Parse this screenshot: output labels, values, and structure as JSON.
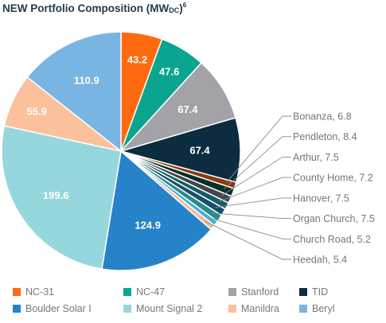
{
  "title": {
    "main": "NEW Portfolio Composition (MW",
    "subscript": "DC",
    "close": ")",
    "superscript": "6"
  },
  "chart_data": {
    "type": "pie",
    "start_angle_deg": 0,
    "direction": "clockwise",
    "slices": [
      {
        "name": "NC-31",
        "value": 43.2,
        "label": "43.2",
        "color": "#ff6a10"
      },
      {
        "name": "NC-47",
        "value": 47.6,
        "label": "47.6",
        "color": "#0aa590"
      },
      {
        "name": "Stanford",
        "value": 67.4,
        "label": "67.4",
        "color": "#a2a2a8"
      },
      {
        "name": "TID",
        "value": 67.4,
        "label": "67.4",
        "color": "#0c2d40"
      },
      {
        "name": "Bonanza",
        "value": 6.8,
        "label": "Bonanza, 6.8",
        "color": "#8a3a0c",
        "callout": true
      },
      {
        "name": "Pendleton",
        "value": 8.4,
        "label": "Pendleton, 8.4",
        "color": "#062f2a",
        "callout": true
      },
      {
        "name": "Arthur",
        "value": 7.5,
        "label": "Arthur, 7.5",
        "color": "#45454a",
        "callout": true
      },
      {
        "name": "County Home",
        "value": 7.2,
        "label": "County Home, 7.2",
        "color": "#0e5e63",
        "callout": true
      },
      {
        "name": "Hanover",
        "value": 7.5,
        "label": "Hanover, 7.5",
        "color": "#1a4d6a",
        "callout": true
      },
      {
        "name": "Organ Church",
        "value": 7.5,
        "label": "Organ Church, 7.5",
        "color": "#2c8a86",
        "callout": true
      },
      {
        "name": "Church Road",
        "value": 5.2,
        "label": "Church Road, 5.2",
        "color": "#3ab3e0",
        "callout": true
      },
      {
        "name": "Heedah",
        "value": 5.4,
        "label": "Heedah, 5.4",
        "color": "#f6b89a",
        "callout": true
      },
      {
        "name": "Boulder Solar I",
        "value": 124.9,
        "label": "124.9",
        "color": "#2683c9"
      },
      {
        "name": "Mount Signal 2",
        "value": 199.6,
        "label": "199.6",
        "color": "#96d7dd"
      },
      {
        "name": "Manildra",
        "value": 55.9,
        "label": "55.9",
        "color": "#fbc09c"
      },
      {
        "name": "Beryl",
        "value": 110.9,
        "label": "110.9",
        "color": "#79b5e2"
      }
    ],
    "legend": {
      "placement": "bottom",
      "entries": [
        {
          "name": "NC-31",
          "color": "#ff6a10"
        },
        {
          "name": "NC-47",
          "color": "#0aa590"
        },
        {
          "name": "Stanford",
          "color": "#a2a2a8"
        },
        {
          "name": "TID",
          "color": "#0c2d40"
        },
        {
          "name": "Boulder Solar I",
          "color": "#2683c9"
        },
        {
          "name": "Mount Signal 2",
          "color": "#96d7dd"
        },
        {
          "name": "Manildra",
          "color": "#fbc09c"
        },
        {
          "name": "Beryl",
          "color": "#79b5e2"
        }
      ]
    }
  }
}
